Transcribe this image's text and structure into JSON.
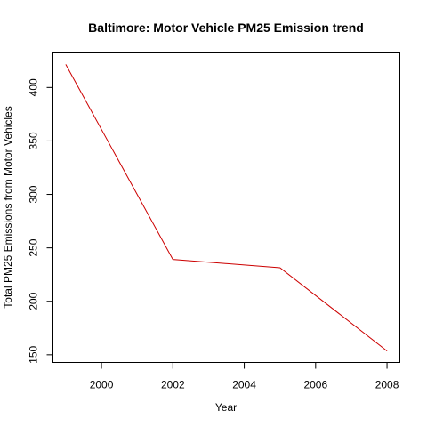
{
  "chart_data": {
    "type": "line",
    "title": "Baltimore: Motor Vehicle PM25 Emission trend",
    "xlabel": "Year",
    "ylabel": "Total PM25 Emissions from Motor Vehicles",
    "x": [
      1999,
      2002,
      2005,
      2008
    ],
    "series": [
      {
        "values": [
          421.6,
          239.2,
          231.4,
          153.5
        ],
        "color": "#cc0000"
      }
    ],
    "xlim": [
      1998.64,
      2008.36
    ],
    "ylim": [
      142.8,
      432.3
    ],
    "xticks": [
      2000,
      2002,
      2004,
      2006,
      2008
    ],
    "yticks": [
      150,
      200,
      250,
      300,
      350,
      400
    ],
    "grid": false
  }
}
